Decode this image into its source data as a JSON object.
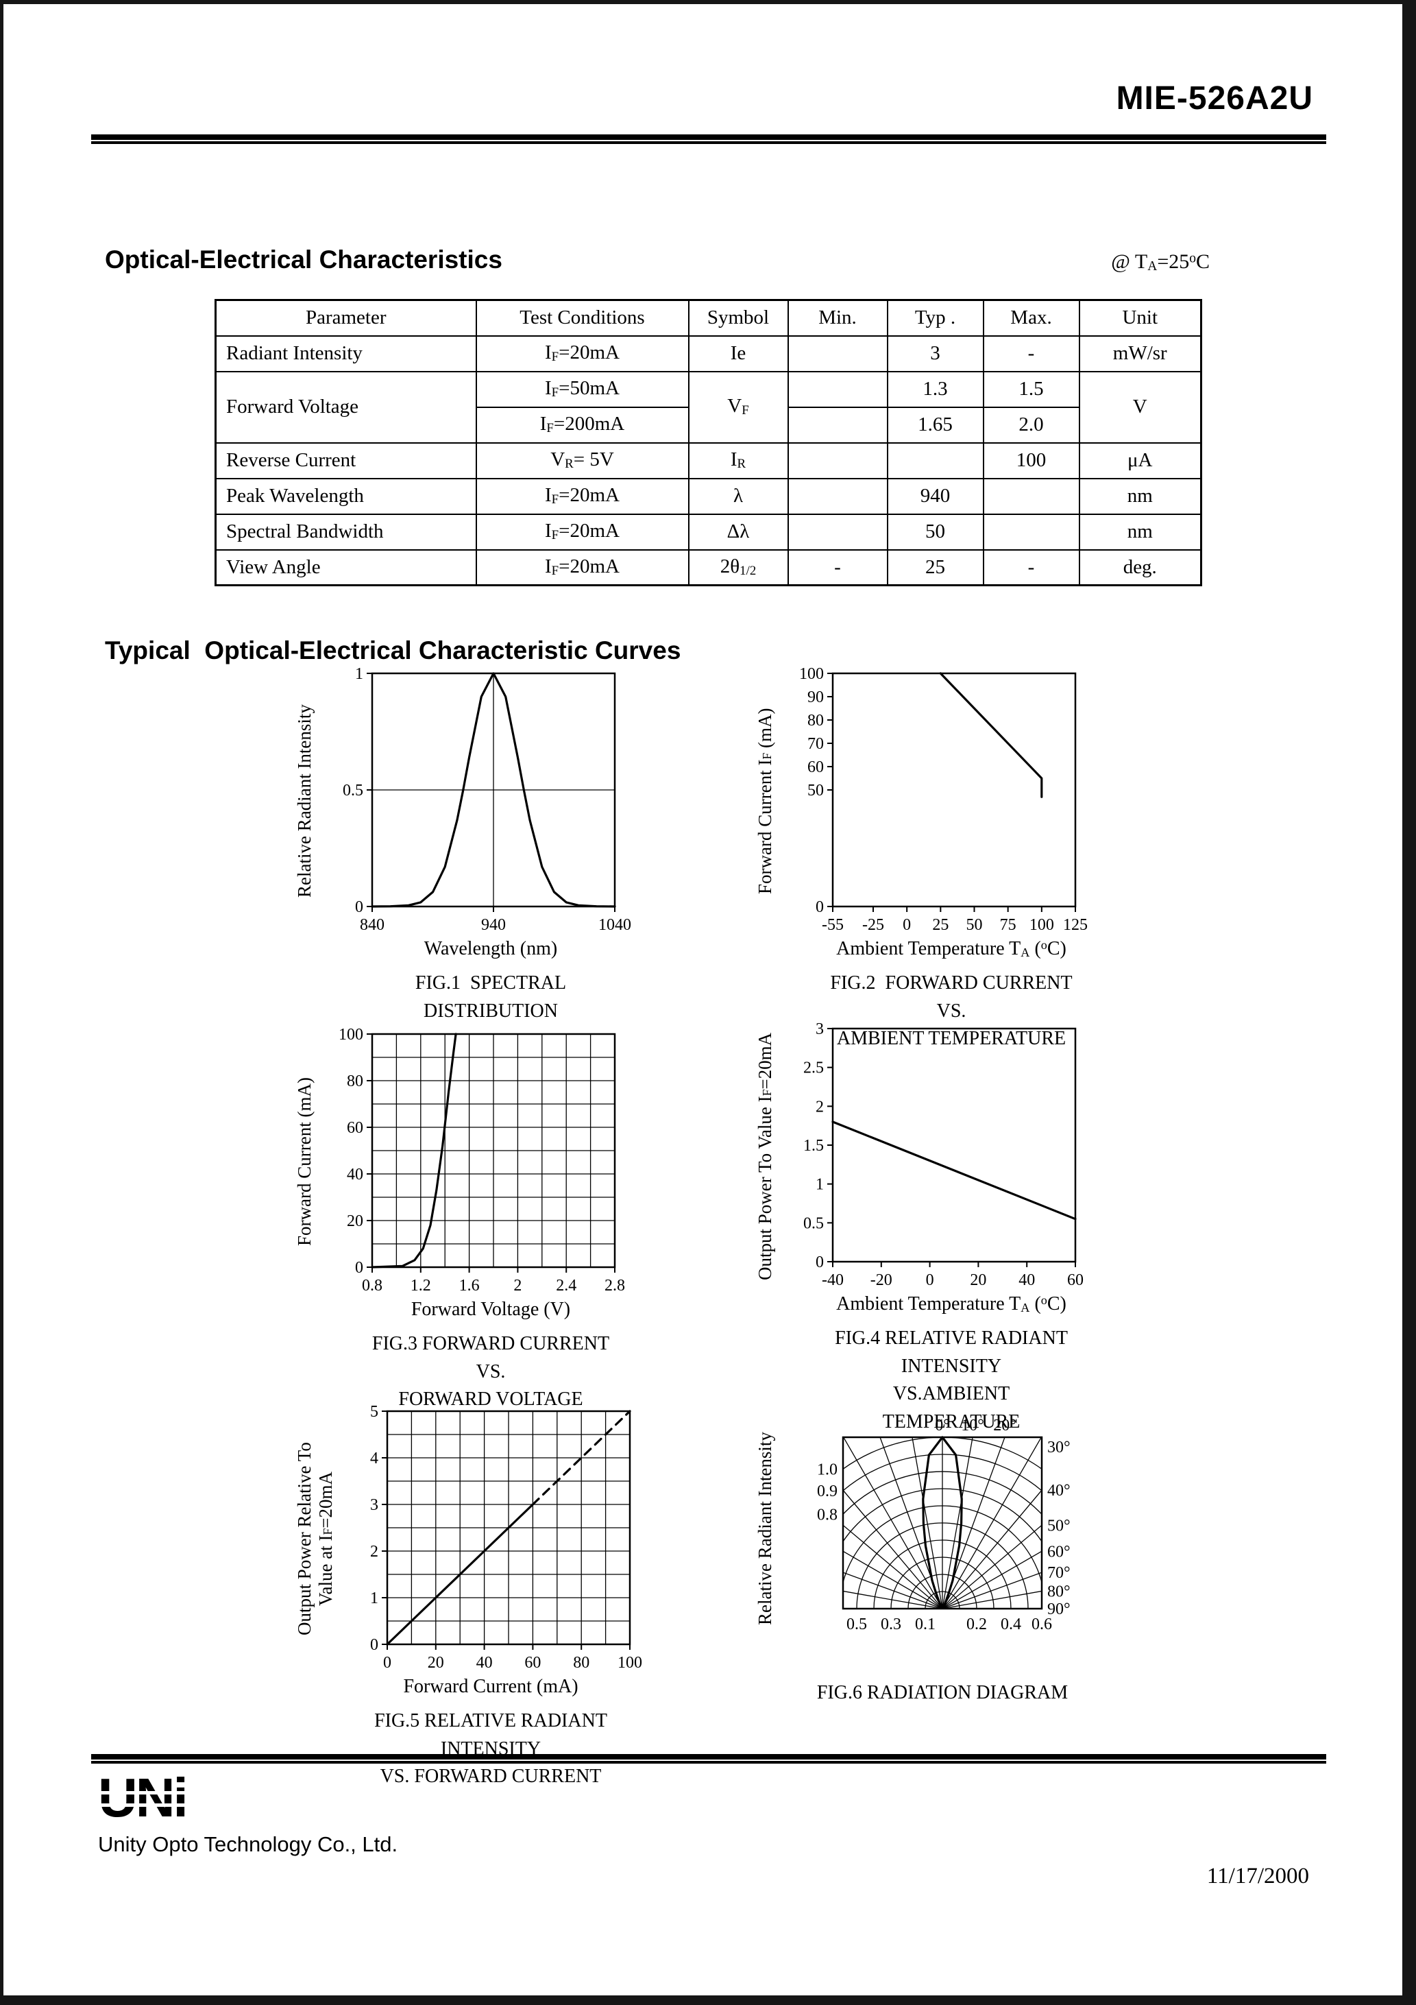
{
  "header": {
    "part_number": "MIE-526A2U"
  },
  "section_oe": {
    "title": "Optical-Electrical Characteristics",
    "condition_html": "@ T<sub>A</sub>=25<sup>o</sup>C"
  },
  "table": {
    "headers": [
      "Parameter",
      "Test Conditions",
      "Symbol",
      "Min.",
      "Typ .",
      "Max.",
      "Unit"
    ],
    "rows": {
      "radiant": {
        "param": "Radiant Intensity",
        "cond": "I<sub>F</sub>=20mA",
        "sym": "Ie",
        "min": "",
        "typ": "3",
        "max": "-",
        "unit": "mW/sr"
      },
      "vf": {
        "param": "Forward Voltage",
        "cond1": "I<sub>F</sub>=50mA",
        "cond2": "I<sub>F</sub>=200mA",
        "sym": "V<sub>F</sub>",
        "min1": "",
        "min2": "",
        "typ1": "1.3",
        "typ2": "1.65",
        "max1": "1.5",
        "max2": "2.0",
        "unit": "V"
      },
      "reverse": {
        "param": "Reverse Current",
        "cond": "V<sub>R</sub>= 5V",
        "sym": "I<sub>R</sub>",
        "min": "",
        "typ": "",
        "max": "100",
        "unit": "μA"
      },
      "peak": {
        "param": "Peak Wavelength",
        "cond": "I<sub>F</sub>=20mA",
        "sym": "λ",
        "min": "",
        "typ": "940",
        "max": "",
        "unit": "nm"
      },
      "bandwidth": {
        "param": "Spectral Bandwidth",
        "cond": "I<sub>F</sub>=20mA",
        "sym": "Δλ",
        "min": "",
        "typ": "50",
        "max": "",
        "unit": "nm"
      },
      "viewangle": {
        "param": "View Angle",
        "cond": "I<sub>F</sub>=20mA",
        "sym": "2θ<sub>1/2</sub>",
        "min": "-",
        "typ": "25",
        "max": "-",
        "unit": "deg."
      }
    }
  },
  "section_curves": {
    "title": "Typical  Optical-Electrical Characteristic Curves"
  },
  "chart_data": [
    {
      "id": "FIG.1",
      "type": "line",
      "title": "SPECTRAL DISTRIBUTION",
      "caption_html": "FIG.1&nbsp; SPECTRAL DISTRIBUTION",
      "ylabel_html": "Relative Radiant Intensity",
      "xlabel_html": "Wavelength (nm)",
      "xlim": [
        840,
        1040
      ],
      "ylim": [
        0,
        1
      ],
      "xticks": [
        840,
        940,
        1040
      ],
      "yticks": [
        0,
        0.5,
        1
      ],
      "xgrid": [
        940
      ],
      "ygrid": [
        0.5
      ],
      "series": [
        {
          "dash": false,
          "points": [
            [
              840,
              0
            ],
            [
              855,
              0.001
            ],
            [
              870,
              0.005
            ],
            [
              880,
              0.018
            ],
            [
              890,
              0.062
            ],
            [
              900,
              0.17
            ],
            [
              910,
              0.37
            ],
            [
              915,
              0.5
            ],
            [
              920,
              0.64
            ],
            [
              930,
              0.9
            ],
            [
              940,
              1
            ],
            [
              950,
              0.9
            ],
            [
              960,
              0.64
            ],
            [
              965,
              0.5
            ],
            [
              970,
              0.37
            ],
            [
              980,
              0.17
            ],
            [
              990,
              0.062
            ],
            [
              1000,
              0.018
            ],
            [
              1010,
              0.005
            ],
            [
              1025,
              0.001
            ],
            [
              1040,
              0
            ]
          ]
        }
      ]
    },
    {
      "id": "FIG.2",
      "type": "line",
      "title": "FORWARD CURRENT VS. AMBIENT TEMPERATURE",
      "caption_html": "FIG.2&nbsp; FORWARD CURRENT VS.<br>AMBIENT TEMPERATURE",
      "ylabel_html": "Forward Current I<sub>F</sub> (mA)",
      "xlabel_html": "Ambient Temperature T<sub>A</sub> (<sup>o</sup>C)",
      "xlim": [
        -55,
        125
      ],
      "ylim": [
        0,
        100
      ],
      "xticks": [
        -55,
        -25,
        0,
        25,
        50,
        75,
        100,
        125
      ],
      "yticks": [
        0,
        50,
        60,
        70,
        80,
        90,
        100
      ],
      "xgrid": [],
      "ygrid": [],
      "series": [
        {
          "dash": false,
          "points": [
            [
              25,
              100
            ],
            [
              95,
              58
            ],
            [
              100,
              55
            ],
            [
              100,
              47
            ]
          ]
        }
      ]
    },
    {
      "id": "FIG.3",
      "type": "line",
      "title": "FORWARD CURRENT VS. FORWARD VOLTAGE",
      "caption_html": "FIG.3 FORWARD CURRENT VS.<br>FORWARD VOLTAGE",
      "ylabel_html": "Forward Current (mA)",
      "xlabel_html": "Forward Voltage (V)",
      "xlim": [
        0.8,
        2.8
      ],
      "ylim": [
        0,
        100
      ],
      "xticks": [
        0.8,
        1.2,
        1.6,
        2,
        2.4,
        2.8
      ],
      "yticks": [
        0,
        20,
        40,
        60,
        80,
        100
      ],
      "xgrid": [
        1.0,
        1.2,
        1.4,
        1.6,
        1.8,
        2.0,
        2.2,
        2.4,
        2.6
      ],
      "ygrid": [
        10,
        20,
        30,
        40,
        50,
        60,
        70,
        80,
        90
      ],
      "series": [
        {
          "dash": false,
          "points": [
            [
              0.8,
              0
            ],
            [
              1.05,
              0.5
            ],
            [
              1.15,
              3
            ],
            [
              1.22,
              8
            ],
            [
              1.28,
              18
            ],
            [
              1.33,
              33
            ],
            [
              1.38,
              52
            ],
            [
              1.43,
              75
            ],
            [
              1.47,
              92
            ],
            [
              1.49,
              100
            ]
          ]
        }
      ]
    },
    {
      "id": "FIG.4",
      "type": "line",
      "title": "RELATIVE RADIANT INTENSITY VS. AMBIENT TEMPERATURE",
      "caption_html": "FIG.4 RELATIVE RADIANT INTENSITY<br>VS.AMBIENT TEMPERATURE",
      "ylabel_html": "Output Power To Value I<sub>F</sub>=20mA",
      "xlabel_html": "Ambient Temperature T<sub>A</sub> (<sup>o</sup>C)",
      "xlim": [
        -40,
        60
      ],
      "ylim": [
        0,
        3
      ],
      "xticks": [
        -40,
        -20,
        0,
        20,
        40,
        60
      ],
      "yticks": [
        0,
        0.5,
        1,
        1.5,
        2,
        2.5,
        3
      ],
      "xgrid": [],
      "ygrid": [],
      "series": [
        {
          "dash": false,
          "points": [
            [
              -40,
              1.8
            ],
            [
              60,
              0.55
            ]
          ]
        }
      ]
    },
    {
      "id": "FIG.5",
      "type": "line",
      "title": "RELATIVE RADIANT INTENSITY VS. FORWARD CURRENT",
      "caption_html": "FIG.5 RELATIVE RADIANT INTENSITY<br>VS. FORWARD CURRENT",
      "ylabel_html": "Output Power Relative To<br>Value at I<sub>F</sub>=20mA",
      "xlabel_html": "Forward Current (mA)",
      "xlim": [
        0,
        100
      ],
      "ylim": [
        0,
        5
      ],
      "xticks": [
        0,
        20,
        40,
        60,
        80,
        100
      ],
      "yticks": [
        0,
        1,
        2,
        3,
        4,
        5
      ],
      "xgrid": [
        10,
        20,
        30,
        40,
        50,
        60,
        70,
        80,
        90
      ],
      "ygrid": [
        0.5,
        1,
        1.5,
        2,
        2.5,
        3,
        3.5,
        4,
        4.5
      ],
      "series": [
        {
          "dash": false,
          "points": [
            [
              0,
              0
            ],
            [
              60,
              3
            ]
          ]
        },
        {
          "dash": true,
          "points": [
            [
              60,
              3
            ],
            [
              100,
              5
            ]
          ]
        }
      ]
    },
    {
      "id": "FIG.6",
      "type": "polar",
      "title": "RADIATION DIAGRAM",
      "caption_html": "FIG.6 RADIATION DIAGRAM",
      "ylabel_html": "Relative Radiant Intensity",
      "rings": [
        0.1,
        0.2,
        0.3,
        0.4,
        0.5,
        0.6,
        0.7,
        0.8,
        0.9,
        1.0
      ],
      "angle_step": 10,
      "top_angle_labels": [
        "0°",
        "10°",
        "20°"
      ],
      "top_angle_values": [
        0,
        10,
        20
      ],
      "right_angle_labels": [
        "30°",
        "40°",
        "50°",
        "60°",
        "70°",
        "80°",
        "90°"
      ],
      "right_angle_values": [
        30,
        40,
        50,
        60,
        70,
        80,
        90
      ],
      "left_scale_labels": [
        "1.0",
        "0.9",
        "0.8"
      ],
      "left_scale_values": [
        1.0,
        0.9,
        0.8
      ],
      "bottom_left_labels": [
        "0.5",
        "0.3",
        "0.1"
      ],
      "bottom_left_values": [
        0.5,
        0.3,
        0.1
      ],
      "bottom_right_labels": [
        "0.2",
        "0.4",
        "0.6"
      ],
      "bottom_right_values": [
        0.2,
        0.4,
        0.6
      ],
      "lobe": [
        [
          -35,
          0.004
        ],
        [
          -30,
          0.018
        ],
        [
          -25,
          0.064
        ],
        [
          -20,
          0.175
        ],
        [
          -15,
          0.38
        ],
        [
          -12.5,
          0.51
        ],
        [
          -10,
          0.65
        ],
        [
          -5,
          0.9
        ],
        [
          0,
          1
        ],
        [
          5,
          0.9
        ],
        [
          10,
          0.65
        ],
        [
          12.5,
          0.51
        ],
        [
          15,
          0.38
        ],
        [
          20,
          0.175
        ],
        [
          25,
          0.064
        ],
        [
          30,
          0.018
        ],
        [
          35,
          0.004
        ]
      ]
    }
  ],
  "footer": {
    "logo": "UNi",
    "company": "Unity Opto Technology Co., Ltd.",
    "date": "11/17/2000"
  }
}
